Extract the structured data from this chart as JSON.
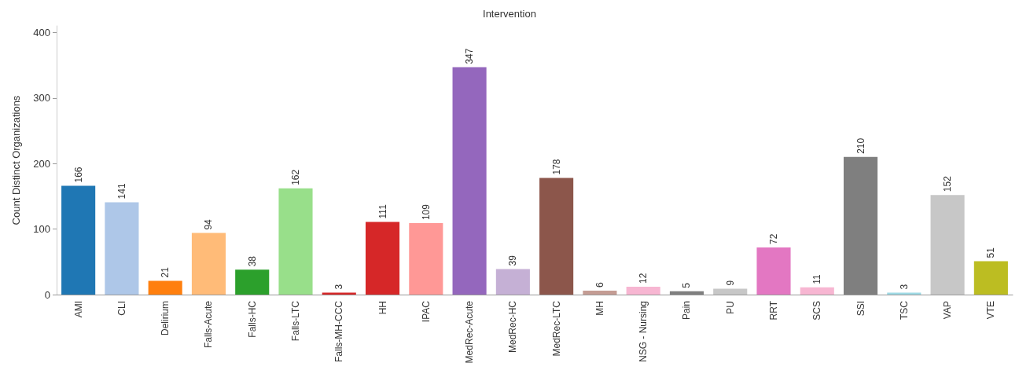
{
  "chart_data": {
    "type": "bar",
    "title": "Intervention",
    "ylabel": "Count Distinct Organizations",
    "categories": [
      "AMI",
      "CLI",
      "Delirium",
      "Falls-Acute",
      "Falls-HC",
      "Falls-LTC",
      "Falls-MH-CCC",
      "HH",
      "IPAC",
      "MedRec-Acute",
      "MedRec-HC",
      "MedRec-LTC",
      "MH",
      "NSG - Nursing",
      "Pain",
      "PU",
      "RRT",
      "SCS",
      "SSI",
      "TSC",
      "VAP",
      "VTE"
    ],
    "values": [
      166,
      141,
      21,
      94,
      38,
      162,
      3,
      111,
      109,
      347,
      39,
      178,
      6,
      12,
      5,
      9,
      72,
      11,
      210,
      3,
      152,
      51
    ],
    "colors": [
      "#1f77b4",
      "#aec7e8",
      "#ff7f0e",
      "#ffbb78",
      "#2ca02c",
      "#98df8a",
      "#d62728",
      "#d62728",
      "#ff9896",
      "#9467bd",
      "#c5b0d5",
      "#8c564b",
      "#c49c94",
      "#f7b6d2",
      "#7f7f7f",
      "#c7c7c7",
      "#e377c2",
      "#f7b6d2",
      "#7f7f7f",
      "#9edae5",
      "#c7c7c7",
      "#bcbd22"
    ],
    "ylim": [
      0,
      410
    ],
    "yticks": [
      0,
      100,
      200,
      300,
      400
    ],
    "data_labels": true
  }
}
